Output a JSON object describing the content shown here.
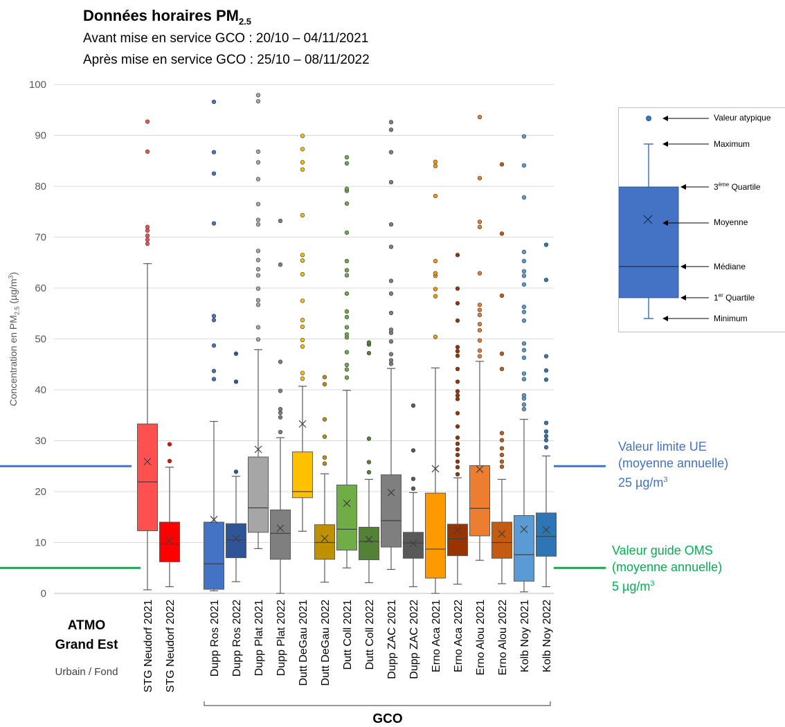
{
  "title": "Données horaires PM",
  "title_sub": "2.5",
  "subtitle_lines": [
    "Avant mise en service GCO : 20/10 – 04/11/2021",
    "Après mise en service GCO : 25/10 – 08/11/2022"
  ],
  "chart_data": {
    "type": "box",
    "ylabel": "Concentration en PM2.5 (µg/m3)",
    "ylim": [
      0,
      100
    ],
    "yticks": [
      0,
      10,
      20,
      30,
      40,
      50,
      60,
      70,
      80,
      90,
      100
    ],
    "grid": true,
    "series": [
      {
        "name": "STG Neudorf 2021",
        "color": "#ff5050",
        "min": 0.7,
        "q1": 12.3,
        "median": 21.9,
        "q3": 33.3,
        "max": 64.8,
        "mean": 25.9,
        "outliers": [
          68.7,
          69.5,
          70.3,
          71.3,
          72.0,
          86.8,
          92.7
        ]
      },
      {
        "name": "STG Neudorf 2022",
        "color": "#ff0000",
        "min": 1.3,
        "q1": 6.2,
        "median": 9.7,
        "q3": 14.0,
        "max": 24.8,
        "mean": 10.4,
        "outliers": [
          26.0,
          29.3
        ]
      },
      {
        "name": "Dupp Ros 2021",
        "color": "#4472c4",
        "min": 0.5,
        "q1": 0.8,
        "median": 5.8,
        "q3": 14.0,
        "max": 33.8,
        "mean": 14.5,
        "outliers": [
          42.1,
          43.7,
          48.7,
          53.7,
          54.5,
          72.7,
          82.5,
          86.7,
          96.6
        ]
      },
      {
        "name": "Dupp Ros 2022",
        "color": "#2f5597",
        "min": 2.3,
        "q1": 7.0,
        "median": 10.5,
        "q3": 13.7,
        "max": 23.0,
        "mean": 10.8,
        "outliers": [
          23.9,
          41.6,
          47.1
        ]
      },
      {
        "name": "Dupp Plat 2021",
        "color": "#a6a6a6",
        "min": 8.8,
        "q1": 12.0,
        "median": 16.8,
        "q3": 26.8,
        "max": 47.9,
        "mean": 28.3,
        "outliers": [
          49.9,
          52.3,
          56.7,
          57.6,
          59.9,
          62.5,
          63.7,
          65.5,
          67.3,
          72.5,
          73.4,
          76.5,
          81.4,
          84.7,
          86.8,
          96.7,
          97.9
        ]
      },
      {
        "name": "Dupp Plat 2022",
        "color": "#7f7f7f",
        "min": 0.0,
        "q1": 6.7,
        "median": 11.8,
        "q3": 16.4,
        "max": 30.6,
        "mean": 12.8,
        "outliers": [
          31.7,
          34.6,
          35.5,
          36.2,
          39.8,
          45.5,
          64.6,
          73.2
        ]
      },
      {
        "name": "Dutt DeGau 2021",
        "color": "#ffc000",
        "min": 12.2,
        "q1": 18.8,
        "median": 20.0,
        "q3": 27.8,
        "max": 40.7,
        "mean": 33.3,
        "outliers": [
          42.2,
          43.3,
          48.5,
          49.8,
          52.4,
          53.7,
          57.5,
          62.7,
          65.4,
          66.5,
          74.3,
          83.3,
          84.7,
          87.3,
          89.9
        ]
      },
      {
        "name": "Dutt DeGau 2022",
        "color": "#bf9000",
        "min": 2.2,
        "q1": 6.7,
        "median": 10.0,
        "q3": 13.5,
        "max": 23.5,
        "mean": 10.8,
        "outliers": [
          25.5,
          26.7,
          30.8,
          34.2,
          41.1,
          42.5
        ]
      },
      {
        "name": "Dutt Coll 2021",
        "color": "#70ad47",
        "min": 5.0,
        "q1": 8.5,
        "median": 12.6,
        "q3": 21.3,
        "max": 39.9,
        "mean": 17.7,
        "outliers": [
          42.4,
          44.0,
          44.9,
          47.4,
          50.3,
          50.9,
          52.3,
          54.3,
          55.4,
          58.9,
          62.5,
          63.5,
          65.3,
          70.9,
          76.6,
          79.1,
          79.5,
          84.5,
          85.7
        ]
      },
      {
        "name": "Dutt Coll 2022",
        "color": "#548235",
        "min": 2.1,
        "q1": 6.6,
        "median": 10.2,
        "q3": 13.0,
        "max": 22.4,
        "mean": 10.6,
        "outliers": [
          23.8,
          25.8,
          30.4,
          47.2,
          48.9,
          49.3
        ]
      },
      {
        "name": "Dupp ZAC 2021",
        "color": "#7f7f7f",
        "min": 4.7,
        "q1": 9.1,
        "median": 14.3,
        "q3": 23.3,
        "max": 44.2,
        "mean": 19.8,
        "outliers": [
          45.1,
          45.8,
          47.0,
          49.5,
          51.2,
          51.8,
          55.1,
          58.9,
          61.4,
          68.1,
          72.5,
          80.8,
          86.7,
          91.1,
          92.6
        ]
      },
      {
        "name": "Dupp ZAC 2022",
        "color": "#595959",
        "min": 1.3,
        "q1": 6.9,
        "median": 9.9,
        "q3": 12.0,
        "max": 19.8,
        "mean": 9.8,
        "outliers": [
          20.6,
          22.5,
          28.1,
          36.9
        ]
      },
      {
        "name": "Erno Aca 2021",
        "color": "#ff9900",
        "min": 0.0,
        "q1": 3.0,
        "median": 8.7,
        "q3": 19.7,
        "max": 44.3,
        "mean": 24.5,
        "outliers": [
          50.4,
          58.4,
          59.8,
          62.4,
          62.9,
          65.3,
          78.1,
          84.0,
          84.8
        ]
      },
      {
        "name": "Erno Aca 2022",
        "color": "#993300",
        "min": 1.8,
        "q1": 7.4,
        "median": 10.7,
        "q3": 13.6,
        "max": 22.7,
        "mean": 12.4,
        "outliers": [
          23.4,
          24.8,
          25.9,
          27.2,
          28.3,
          29.4,
          30.6,
          32.8,
          35.4,
          38.2,
          38.9,
          39.7,
          41.6,
          44.1,
          46.7,
          47.6,
          48.4,
          53.6,
          57.0,
          59.9,
          66.5
        ]
      },
      {
        "name": "Erno Alou 2021",
        "color": "#ed7d31",
        "min": 6.5,
        "q1": 11.3,
        "median": 16.7,
        "q3": 25.1,
        "max": 45.6,
        "mean": 24.4,
        "outliers": [
          46.6,
          47.7,
          49.7,
          51.7,
          52.9,
          54.7,
          55.7,
          56.7,
          62.9,
          72.0,
          73.0,
          81.6,
          93.6
        ]
      },
      {
        "name": "Erno Alou 2022",
        "color": "#c55a11",
        "min": 1.9,
        "q1": 6.9,
        "median": 10.0,
        "q3": 14.0,
        "max": 22.4,
        "mean": 11.7,
        "outliers": [
          24.9,
          25.9,
          27.2,
          28.5,
          30.1,
          31.5,
          44.1,
          47.1,
          58.5,
          70.7,
          84.3
        ]
      },
      {
        "name": "Kolb Noy 2021",
        "color": "#5b9bd5",
        "min": 0.3,
        "q1": 2.4,
        "median": 7.6,
        "q3": 15.3,
        "max": 34.2,
        "mean": 12.6,
        "outliers": [
          36.2,
          37.1,
          38.3,
          38.9,
          42.1,
          43.2,
          46.3,
          47.8,
          49.1,
          53.6,
          55.3,
          56.3,
          60.7,
          62.4,
          63.3,
          65.3,
          67.1,
          77.8,
          84.1,
          89.8
        ]
      },
      {
        "name": "Kolb Noy 2022",
        "color": "#2e75b6",
        "min": 1.3,
        "q1": 7.3,
        "median": 11.2,
        "q3": 15.8,
        "max": 27.0,
        "mean": 12.5,
        "outliers": [
          28.7,
          30.1,
          30.9,
          31.8,
          33.5,
          42.0,
          43.8,
          46.6,
          61.6,
          68.5
        ]
      }
    ],
    "reference_lines": [
      {
        "label_lines": [
          "Valeur limite UE",
          "(moyenne annuelle)",
          "25 µg/m"
        ],
        "label_sup": "3",
        "value": 25,
        "color": "#4472c4"
      },
      {
        "label_lines": [
          "Valeur guide OMS",
          "(moyenne annuelle)",
          "5 µg/m"
        ],
        "label_sup": "3",
        "value": 5,
        "color": "#00b050"
      }
    ],
    "groups": [
      {
        "name_lines": [
          "ATMO",
          "Grand Est"
        ],
        "sublabel": "Urbain / Fond"
      },
      {
        "name": "GCO"
      }
    ]
  },
  "legend": {
    "items": [
      "Valeur atypique",
      "Maximum",
      "3",
      "Moyenne",
      "Médiane",
      "1",
      "Minimum"
    ],
    "q3_sup": "ème",
    "q3_suffix": " Quartile",
    "q1_sup": "er",
    "q1_suffix": " Quartile",
    "box_color": "#4472c4"
  }
}
